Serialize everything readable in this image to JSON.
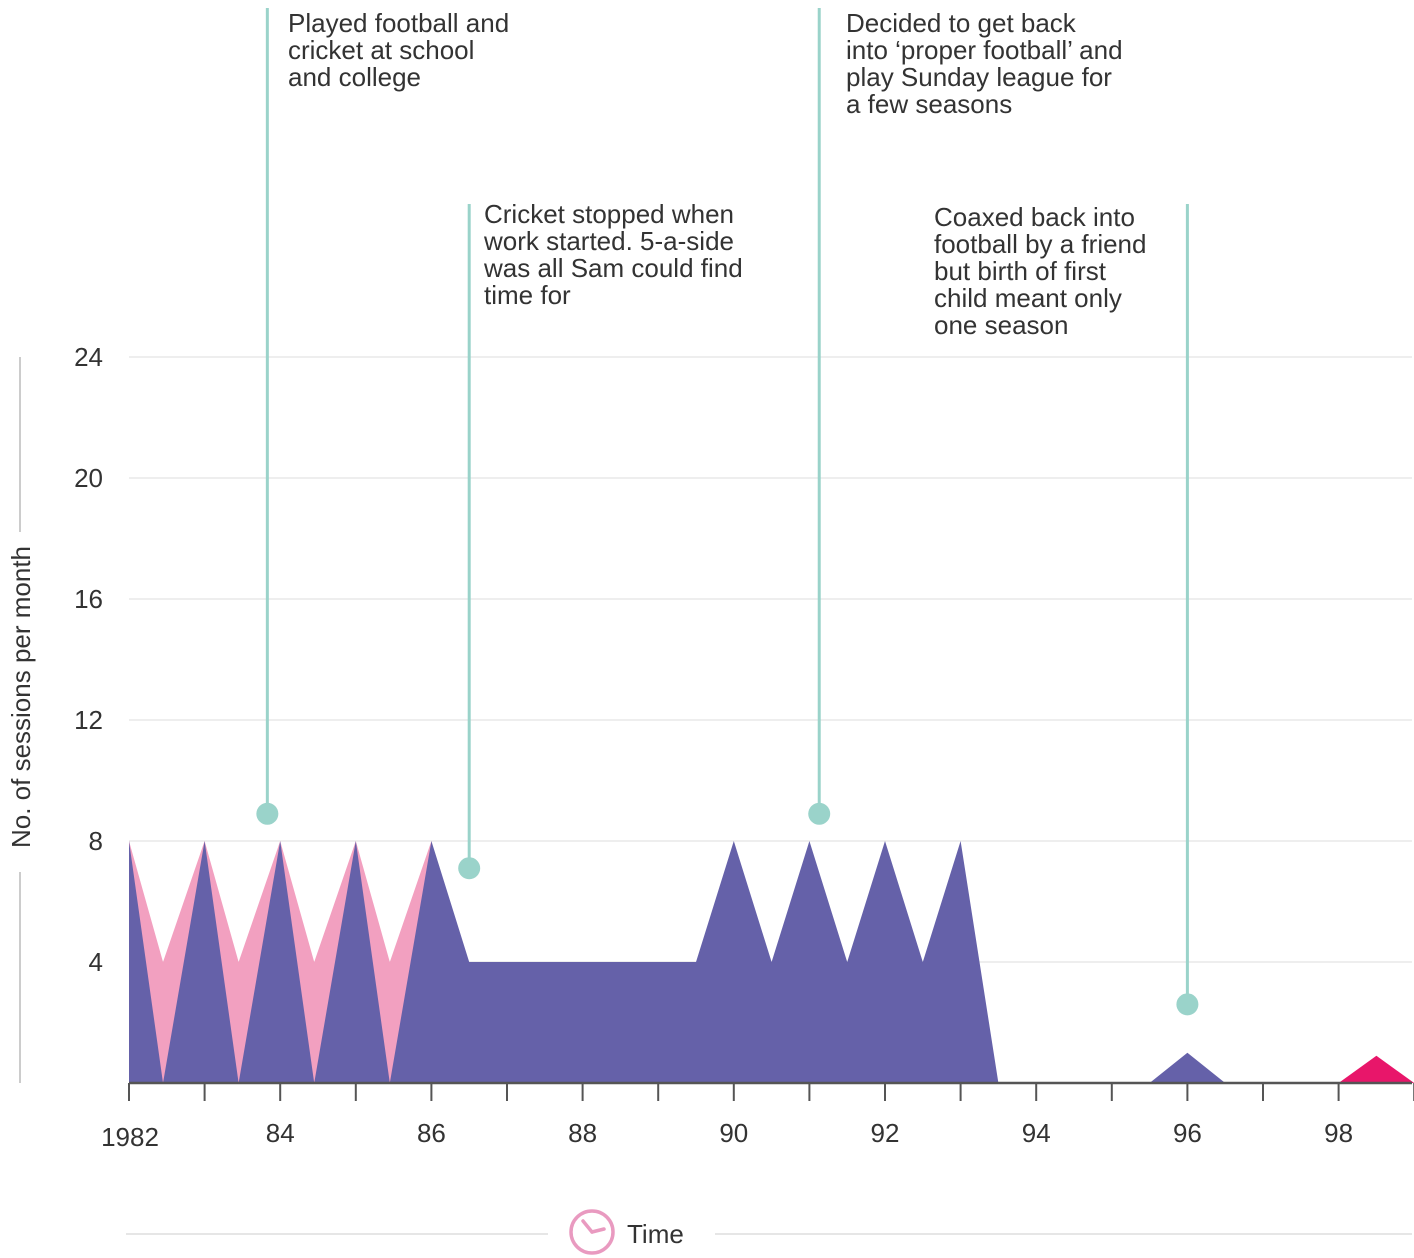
{
  "chart_data": {
    "type": "area",
    "ylabel": "No. of sessions per month",
    "xlabel": "Time",
    "ylim": [
      0,
      24
    ],
    "xlim": [
      1982,
      1999
    ],
    "y_ticks": [
      4,
      8,
      12,
      16,
      20,
      24
    ],
    "x_ticks": [
      {
        "value": 1982,
        "label": "1982"
      },
      {
        "value": 1984,
        "label": "84"
      },
      {
        "value": 1986,
        "label": "86"
      },
      {
        "value": 1988,
        "label": "88"
      },
      {
        "value": 1990,
        "label": "90"
      },
      {
        "value": 1992,
        "label": "92"
      },
      {
        "value": 1994,
        "label": "94"
      },
      {
        "value": 1996,
        "label": "96"
      },
      {
        "value": 1998,
        "label": "98"
      }
    ],
    "grid": true,
    "series": [
      {
        "color": "#f2a0c0",
        "points": [
          [
            1982,
            8
          ],
          [
            1982.45,
            4
          ],
          [
            1983,
            8
          ],
          [
            1983.45,
            4
          ],
          [
            1984,
            8
          ],
          [
            1984.45,
            4
          ],
          [
            1985,
            8
          ],
          [
            1985.45,
            4
          ],
          [
            1986,
            8
          ],
          [
            1986.5,
            0
          ]
        ]
      },
      {
        "color": "#6561a9",
        "points": [
          [
            1982,
            8
          ],
          [
            1982.45,
            0
          ],
          [
            1983,
            8
          ],
          [
            1983.45,
            0
          ],
          [
            1984,
            8
          ],
          [
            1984.45,
            0
          ],
          [
            1985,
            8
          ],
          [
            1985.45,
            0
          ],
          [
            1986,
            8
          ],
          [
            1986.5,
            4
          ],
          [
            1989.5,
            4
          ],
          [
            1990,
            8
          ],
          [
            1990.5,
            4
          ],
          [
            1991,
            8
          ],
          [
            1991.5,
            4
          ],
          [
            1992,
            8
          ],
          [
            1992.5,
            4
          ],
          [
            1993,
            8
          ],
          [
            1993.5,
            0
          ],
          [
            1995.5,
            0
          ],
          [
            1996,
            1
          ],
          [
            1996.5,
            0
          ]
        ]
      },
      {
        "color": "#e8166a",
        "points": [
          [
            1998,
            0
          ],
          [
            1998.5,
            0.9
          ],
          [
            1999,
            0
          ]
        ]
      }
    ],
    "annotations": [
      {
        "text": "Played football and\ncricket at school\nand college",
        "x": 1983.83,
        "y": 8.9,
        "line_top_y": 35.0
      },
      {
        "text": "Cricket stopped when\nwork started. 5-a-side\nwas all Sam could find\ntime for",
        "x": 1986.5,
        "y": 7.1,
        "line_top_y": 28.6
      },
      {
        "text": "Decided to get back\ninto ‘proper football’ and\nplay Sunday league for\na few seasons",
        "x": 1991.13,
        "y": 8.9,
        "line_top_y": 35.0
      },
      {
        "text": "Coaxed back into\nfootball by a friend\nbut birth of first\nchild meant only\none season",
        "x": 1996.0,
        "y": 2.6,
        "line_top_y": 28.6
      }
    ],
    "colors": {
      "annotation": "#9ad3ca",
      "grid": "#e8e8e8",
      "axis": "#555555",
      "clock": "#e99ac0"
    },
    "x_icon": "clock-icon"
  }
}
